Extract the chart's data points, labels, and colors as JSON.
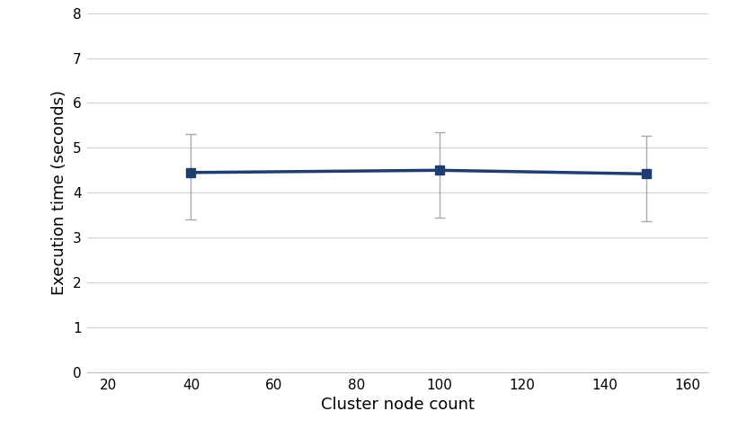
{
  "x": [
    40,
    100,
    150
  ],
  "y": [
    4.45,
    4.5,
    4.42
  ],
  "yerr_upper": [
    0.85,
    0.85,
    0.85
  ],
  "yerr_lower": [
    1.05,
    1.05,
    1.05
  ],
  "line_color": "#1f3d6e",
  "marker": "s",
  "marker_size": 7,
  "line_width": 2.5,
  "xlabel": "Cluster node count",
  "ylabel": "Execution time (seconds)",
  "xlim": [
    15,
    165
  ],
  "ylim": [
    0,
    8
  ],
  "xticks": [
    20,
    40,
    60,
    80,
    100,
    120,
    140,
    160
  ],
  "yticks": [
    0,
    1,
    2,
    3,
    4,
    5,
    6,
    7,
    8
  ],
  "grid_color": "#d0d0d0",
  "background_color": "#ffffff",
  "xlabel_fontsize": 13,
  "ylabel_fontsize": 13,
  "tick_fontsize": 11,
  "ecolor": "#aaaaaa",
  "elinewidth": 1.0,
  "capsize": 4,
  "capthick": 1.0
}
